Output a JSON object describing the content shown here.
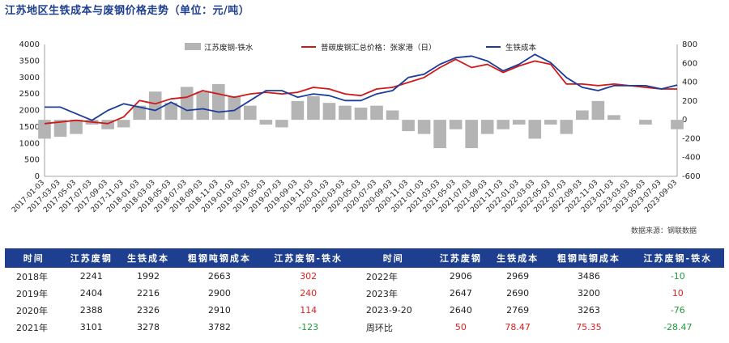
{
  "page_title": "江苏地区生铁成本与废钢价格走势（单位：元/吨）",
  "source_note": "数据来源：钢联数据",
  "chart_data": {
    "type": "line",
    "title": "",
    "legend": [
      "江苏废钢-铁水",
      "普碳废钢汇总价格：张家港（日）",
      "生铁成本"
    ],
    "legend_placement": "top",
    "y_left": {
      "range": [
        0,
        4000
      ],
      "ticks": [
        0,
        500,
        1000,
        1500,
        2000,
        2500,
        3000,
        3500,
        4000
      ]
    },
    "y_right": {
      "range": [
        -600,
        800
      ],
      "ticks": [
        -600,
        -400,
        -200,
        0,
        200,
        400,
        600,
        800
      ]
    },
    "x_tick_labels": [
      "2017-01-03",
      "2017-03-03",
      "2017-05-03",
      "2017-07-03",
      "2017-09-03",
      "2017-11-03",
      "2018-01-03",
      "2018-03-03",
      "2018-05-03",
      "2018-07-03",
      "2018-09-03",
      "2018-11-03",
      "2019-01-03",
      "2019-03-03",
      "2019-05-03",
      "2019-07-03",
      "2019-09-03",
      "2019-11-03",
      "2020-01-03",
      "2020-03-03",
      "2020-05-03",
      "2020-07-03",
      "2020-09-03",
      "2020-11-03",
      "2021-01-03",
      "2021-03-03",
      "2021-05-03",
      "2021-07-03",
      "2021-09-03",
      "2021-11-03",
      "2022-01-03",
      "2022-03-03",
      "2022-05-03",
      "2022-07-03",
      "2022-09-03",
      "2022-11-03",
      "2023-01-03",
      "2023-03-03",
      "2023-05-03",
      "2023-07-03",
      "2023-09-03"
    ],
    "colors": {
      "spread": "#b4b4b4",
      "scrap": "#d01818",
      "pig_iron": "#1b3d9a"
    },
    "series": [
      {
        "name": "普碳废钢汇总价格：张家港（日）",
        "axis": "left",
        "values": [
          1600,
          1650,
          1700,
          1650,
          1600,
          1800,
          2300,
          2200,
          2350,
          2400,
          2600,
          2500,
          2400,
          2500,
          2550,
          2500,
          2550,
          2700,
          2650,
          2500,
          2450,
          2650,
          2700,
          2850,
          3000,
          3300,
          3550,
          3300,
          3400,
          3150,
          3350,
          3500,
          3400,
          2800,
          2800,
          2750,
          2800,
          2750,
          2700,
          2650,
          2650
        ]
      },
      {
        "name": "生铁成本",
        "axis": "left",
        "values": [
          2100,
          2100,
          1900,
          1700,
          2000,
          2200,
          2100,
          2000,
          2250,
          2000,
          2050,
          1950,
          2000,
          2300,
          2600,
          2600,
          2400,
          2500,
          2450,
          2300,
          2300,
          2500,
          2600,
          3000,
          3100,
          3400,
          3600,
          3650,
          3500,
          3200,
          3400,
          3700,
          3450,
          3000,
          2700,
          2600,
          2750,
          2750,
          2750,
          2650,
          2770
        ]
      },
      {
        "name": "江苏废钢-铁水",
        "axis": "right",
        "values": [
          -200,
          -180,
          -150,
          -50,
          -100,
          -80,
          150,
          300,
          180,
          350,
          300,
          380,
          250,
          150,
          -50,
          -80,
          200,
          250,
          180,
          150,
          130,
          150,
          100,
          -120,
          -150,
          -300,
          -100,
          -300,
          -150,
          -100,
          -50,
          -200,
          -50,
          -150,
          100,
          200,
          50,
          0,
          -50,
          0,
          -100
        ]
      }
    ]
  },
  "table": {
    "headers": [
      "时间",
      "江苏废钢",
      "生铁成本",
      "粗钢吨钢成本",
      "江苏废钢-铁水",
      "时间",
      "江苏废钢",
      "生铁成本",
      "粗钢吨钢成本",
      "江苏废钢-铁水"
    ],
    "rows": [
      {
        "cells": [
          "2018年",
          "2241",
          "1992",
          "2663",
          "302",
          "2022年",
          "2906",
          "2969",
          "3486",
          "-10"
        ],
        "colors": [
          "",
          "",
          "",
          "",
          "red",
          "",
          "",
          "",
          "",
          "green"
        ]
      },
      {
        "cells": [
          "2019年",
          "2404",
          "2216",
          "2900",
          "240",
          "2023年",
          "2647",
          "2690",
          "3200",
          "10"
        ],
        "colors": [
          "",
          "",
          "",
          "",
          "red",
          "",
          "",
          "",
          "",
          "red"
        ]
      },
      {
        "cells": [
          "2020年",
          "2388",
          "2326",
          "2910",
          "114",
          "2023-9-20",
          "2640",
          "2769",
          "3263",
          "-76"
        ],
        "colors": [
          "",
          "",
          "",
          "",
          "red",
          "",
          "",
          "",
          "",
          "green"
        ]
      },
      {
        "cells": [
          "2021年",
          "3101",
          "3278",
          "3782",
          "-123",
          "周环比",
          "50",
          "78.47",
          "75.35",
          "-28.47"
        ],
        "colors": [
          "",
          "",
          "",
          "",
          "green",
          "",
          "red",
          "red",
          "red",
          "green"
        ]
      }
    ]
  }
}
